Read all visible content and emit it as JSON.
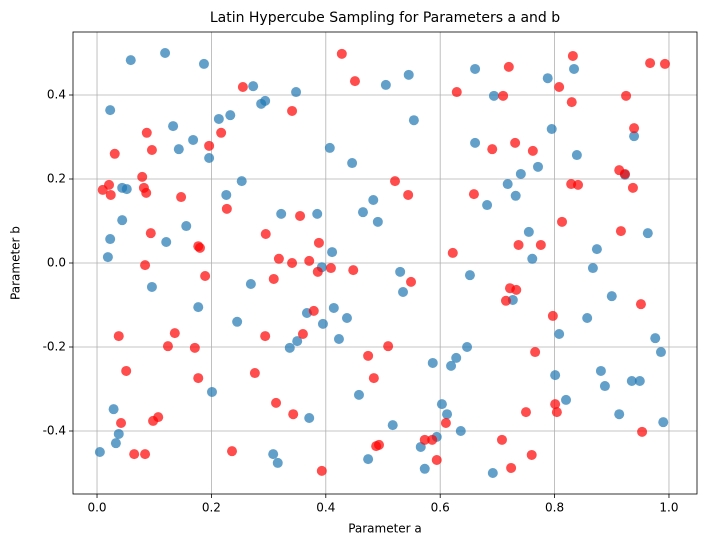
{
  "chart_data": {
    "type": "scatter",
    "title": "Latin Hypercube Sampling for Parameters a and b",
    "x_label": "Parameter a",
    "y_label": "Parameter b",
    "xlim": [
      -0.042,
      1.049
    ],
    "ylim": [
      -0.55,
      0.55
    ],
    "xticks": [
      {
        "value": 0,
        "label": "0.0"
      },
      0.2,
      0.4,
      0.6,
      0.8,
      {
        "value": 1,
        "label": "1.0"
      }
    ],
    "yticks": [
      -0.4,
      -0.2,
      {
        "value": 0,
        "label": "0.0"
      },
      0.2,
      0.4
    ],
    "grid": true,
    "series": [
      {
        "color": "#1f77b4",
        "x": [
          0.005,
          0.059,
          0.119,
          0.187,
          0.023,
          0.133,
          0.168,
          0.143,
          0.196,
          0.213,
          0.233,
          0.273,
          0.287,
          0.294,
          0.348,
          0.253,
          0.226,
          0.044,
          0.052,
          0.023,
          0.019,
          0.121,
          0.156,
          0.044,
          0.096,
          0.177,
          0.245,
          0.269,
          0.201,
          0.029,
          0.038,
          0.033,
          0.308,
          0.316,
          0.337,
          0.35,
          0.367,
          0.371,
          0.395,
          0.414,
          0.423,
          0.437,
          0.393,
          0.407,
          0.322,
          0.385,
          0.411,
          0.465,
          0.483,
          0.491,
          0.446,
          0.505,
          0.545,
          0.554,
          0.53,
          0.535,
          0.458,
          0.474,
          0.517,
          0.566,
          0.573,
          0.587,
          0.594,
          0.603,
          0.612,
          0.619,
          0.628,
          0.636,
          0.647,
          0.652,
          0.692,
          0.661,
          0.661,
          0.682,
          0.694,
          0.718,
          0.732,
          0.741,
          0.727,
          0.755,
          0.761,
          0.771,
          0.788,
          0.795,
          0.801,
          0.808,
          0.82,
          0.834,
          0.839,
          0.857,
          0.867,
          0.874,
          0.881,
          0.888,
          0.9,
          0.913,
          0.923,
          0.935,
          0.939,
          0.949,
          0.963,
          0.976,
          0.986,
          0.99
        ],
        "values": [
          -0.45,
          0.483,
          0.5,
          0.474,
          0.364,
          0.326,
          0.293,
          0.271,
          0.25,
          0.343,
          0.352,
          0.421,
          0.379,
          0.386,
          0.407,
          0.195,
          0.162,
          0.179,
          0.176,
          0.057,
          0.014,
          0.05,
          0.088,
          0.102,
          -0.057,
          -0.105,
          -0.14,
          -0.05,
          -0.307,
          -0.348,
          -0.407,
          -0.429,
          -0.455,
          -0.476,
          -0.202,
          -0.186,
          -0.119,
          -0.369,
          -0.145,
          -0.107,
          -0.181,
          -0.131,
          -0.01,
          0.274,
          0.117,
          0.117,
          0.026,
          0.121,
          0.15,
          0.098,
          0.238,
          0.424,
          0.448,
          0.34,
          -0.021,
          -0.069,
          -0.314,
          -0.467,
          -0.386,
          -0.438,
          -0.49,
          -0.238,
          -0.414,
          -0.336,
          -0.36,
          -0.245,
          -0.226,
          -0.4,
          -0.2,
          -0.029,
          -0.5,
          0.462,
          0.286,
          0.138,
          0.398,
          0.188,
          0.16,
          0.212,
          -0.088,
          0.074,
          0.01,
          0.229,
          0.44,
          0.319,
          -0.267,
          -0.169,
          -0.326,
          0.462,
          0.257,
          -0.131,
          -0.012,
          0.033,
          -0.257,
          -0.293,
          -0.079,
          -0.36,
          0.21,
          -0.281,
          0.302,
          -0.281,
          0.071,
          -0.179,
          -0.212,
          -0.379
        ]
      },
      {
        "color": "#ff0000",
        "x": [
          0.01,
          0.021,
          0.024,
          0.031,
          0.038,
          0.042,
          0.051,
          0.065,
          0.084,
          0.079,
          0.082,
          0.086,
          0.087,
          0.096,
          0.094,
          0.084,
          0.098,
          0.107,
          0.124,
          0.136,
          0.147,
          0.177,
          0.18,
          0.189,
          0.171,
          0.177,
          0.196,
          0.217,
          0.227,
          0.236,
          0.255,
          0.276,
          0.294,
          0.295,
          0.309,
          0.313,
          0.318,
          0.341,
          0.341,
          0.343,
          0.355,
          0.36,
          0.371,
          0.379,
          0.386,
          0.388,
          0.393,
          0.409,
          0.428,
          0.451,
          0.448,
          0.474,
          0.484,
          0.488,
          0.493,
          0.521,
          0.509,
          0.544,
          0.549,
          0.573,
          0.586,
          0.594,
          0.61,
          0.622,
          0.629,
          0.659,
          0.691,
          0.71,
          0.708,
          0.72,
          0.715,
          0.722,
          0.733,
          0.724,
          0.731,
          0.737,
          0.75,
          0.762,
          0.766,
          0.776,
          0.76,
          0.797,
          0.801,
          0.804,
          0.808,
          0.813,
          0.83,
          0.832,
          0.829,
          0.841,
          0.925,
          0.913,
          0.923,
          0.916,
          0.937,
          0.939,
          0.951,
          0.953,
          0.967,
          0.993
        ],
        "values": [
          0.174,
          0.186,
          0.162,
          0.26,
          -0.174,
          -0.381,
          -0.257,
          -0.455,
          -0.455,
          0.205,
          0.179,
          0.167,
          0.31,
          0.269,
          0.071,
          -0.005,
          -0.376,
          -0.367,
          -0.198,
          -0.167,
          0.157,
          0.04,
          0.036,
          -0.031,
          -0.202,
          -0.274,
          0.279,
          0.31,
          0.129,
          -0.448,
          0.419,
          -0.262,
          -0.174,
          0.069,
          -0.038,
          -0.333,
          0.01,
          0,
          0.362,
          -0.36,
          0.112,
          -0.169,
          0.005,
          -0.114,
          -0.021,
          0.048,
          -0.495,
          -0.012,
          0.498,
          0.433,
          -0.017,
          -0.221,
          -0.274,
          -0.436,
          -0.433,
          0.195,
          -0.198,
          0.162,
          -0.045,
          -0.421,
          -0.421,
          -0.469,
          -0.381,
          0.024,
          0.407,
          0.164,
          0.271,
          0.398,
          -0.421,
          0.467,
          -0.09,
          -0.06,
          -0.064,
          -0.488,
          0.286,
          0.043,
          -0.355,
          0.267,
          -0.212,
          0.043,
          -0.457,
          -0.126,
          -0.336,
          -0.355,
          0.419,
          0.098,
          0.383,
          0.493,
          0.188,
          0.186,
          0.398,
          0.221,
          0.212,
          0.076,
          0.179,
          0.321,
          -0.098,
          -0.402,
          0.476,
          0.474
        ]
      }
    ]
  }
}
